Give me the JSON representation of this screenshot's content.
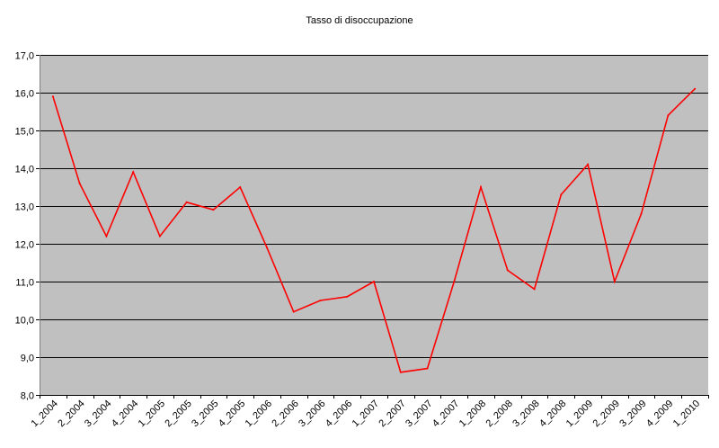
{
  "chart_data": {
    "type": "line",
    "title": "Tasso di disoccupazione",
    "xlabel": "",
    "ylabel": "",
    "categories": [
      "1_2004",
      "2_2004",
      "3_2004",
      "4_2004",
      "1_2005",
      "2_2005",
      "3_2005",
      "4_2005",
      "1_2006",
      "2_2006",
      "3_2006",
      "4_2006",
      "1_2007",
      "2_2007",
      "3_2007",
      "4_2007",
      "1_2008",
      "2_2008",
      "3_2008",
      "4_2008",
      "1_2009",
      "2_2009",
      "3_2009",
      "4_2009",
      "1_2010"
    ],
    "series": [
      {
        "values": [
          15.9,
          13.6,
          12.2,
          13.9,
          12.2,
          13.1,
          12.9,
          13.5,
          11.9,
          10.2,
          10.5,
          10.6,
          11.0,
          8.6,
          8.7,
          11.0,
          13.5,
          11.3,
          10.8,
          13.3,
          14.1,
          11.0,
          12.8,
          15.4,
          16.1
        ],
        "color": "#ff0000"
      }
    ],
    "ylim": [
      8.0,
      17.0
    ],
    "yticks": [
      "8,0",
      "9,0",
      "10,0",
      "11,0",
      "12,0",
      "13,0",
      "14,0",
      "15,0",
      "16,0",
      "17,0"
    ],
    "grid": true,
    "legend": "none",
    "plot_background": "#c0c0c0",
    "gridline_color": "#000000"
  }
}
